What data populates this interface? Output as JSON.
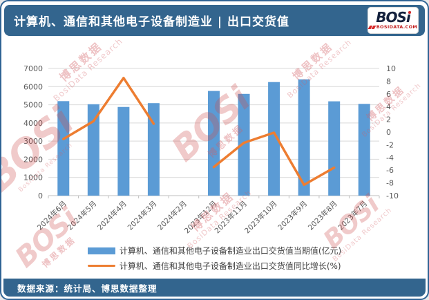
{
  "header": {
    "title": "计算机、通信和其他电子设备制造业 | 出口交货值",
    "logo": {
      "word": "BOSi",
      "domain": "BOSIDATA.COM"
    }
  },
  "footer": {
    "source": "数据来源：统计局、博思数据整理"
  },
  "watermark": {
    "logo": "BOSi",
    "text_cn": "博思数据",
    "text_en": "BosiData Research"
  },
  "colors": {
    "band_blue": "#33658e",
    "bar_blue": "#5b9bd5",
    "line_orange": "#ed7d31",
    "grid_gray": "#d9d9d9",
    "axis_text_gray": "#595959",
    "watermark_red": "#cd5050"
  },
  "legend": {
    "items": [
      {
        "label": "计算机、通信和其他电子设备制造业出口交货值当期值(亿元)",
        "swatch": "bar",
        "color": "#5b9bd5"
      },
      {
        "label": "计算机、通信和其他电子设备制造业出口交货值同比增长(%)",
        "swatch": "line",
        "color": "#ed7d31"
      }
    ]
  },
  "chart_data": {
    "type": "bar",
    "subtype": "combo-bar-line",
    "title": "计算机、通信和其他电子设备制造业 | 出口交货值",
    "categories": [
      "2024年6月",
      "2024年5月",
      "2024年4月",
      "2024年3月",
      "2024年2月",
      "2023年12月",
      "2023年11月",
      "2023年10月",
      "2023年9月",
      "2023年8月",
      "2023年7月"
    ],
    "series": [
      {
        "name": "计算机、通信和其他电子设备制造业出口交货值当期值(亿元)",
        "type": "bar",
        "axis": "left",
        "color": "#5b9bd5",
        "values": [
          5200,
          5030,
          4880,
          5090,
          null,
          5760,
          5600,
          6250,
          6400,
          5190,
          5050
        ]
      },
      {
        "name": "计算机、通信和其他电子设备制造业出口交货值同比增长(%)",
        "type": "line",
        "axis": "right",
        "color": "#ed7d31",
        "values": [
          -1.1,
          1.7,
          8.5,
          1.3,
          null,
          -5.5,
          -1.7,
          -0.1,
          -8.3,
          -5.6,
          null
        ]
      }
    ],
    "left_axis": {
      "min": 0,
      "max": 7000,
      "step": 1000,
      "ticks": [
        "0",
        "1000",
        "2000",
        "3000",
        "4000",
        "5000",
        "6000",
        "7000"
      ]
    },
    "right_axis": {
      "min": -10,
      "max": 10,
      "step": 2,
      "ticks": [
        "10",
        "8",
        "6",
        "4",
        "2",
        "0",
        "-2",
        "-4",
        "-6",
        "-8",
        "-10"
      ]
    },
    "grid": true,
    "legend_position": "bottom",
    "x_label_rotation": -45
  }
}
